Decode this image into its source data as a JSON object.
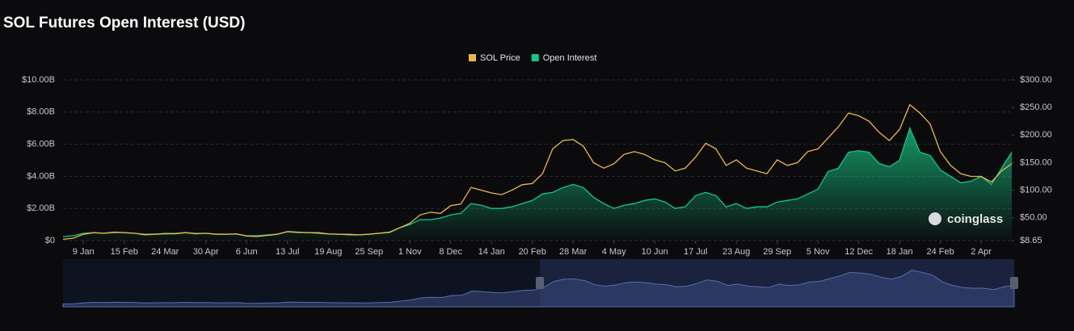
{
  "chart_data": {
    "type": "line",
    "title": "SOL Futures Open Interest (USD)",
    "watermark": "coinglass",
    "legend": "top",
    "categories": [
      null,
      null,
      "9 Jan",
      null,
      null,
      null,
      "15 Feb",
      null,
      null,
      null,
      "24 Mar",
      null,
      null,
      null,
      "30 Apr",
      null,
      null,
      null,
      "6 Jun",
      null,
      null,
      null,
      "13 Jul",
      null,
      null,
      null,
      "19 Aug",
      null,
      null,
      null,
      "25 Sep",
      null,
      null,
      null,
      "1 Nov",
      null,
      null,
      null,
      "8 Dec",
      null,
      null,
      null,
      "14 Jan",
      null,
      null,
      null,
      "20 Feb",
      null,
      null,
      null,
      "28 Mar",
      null,
      null,
      null,
      "4 May",
      null,
      null,
      null,
      "10 Jun",
      null,
      null,
      null,
      "17 Jul",
      null,
      null,
      null,
      "23 Aug",
      null,
      null,
      null,
      "29 Sep",
      null,
      null,
      null,
      "5 Nov",
      null,
      null,
      null,
      "12 Dec",
      null,
      null,
      null,
      "18 Jan",
      null,
      null,
      null,
      "24 Feb",
      null,
      null,
      null,
      "2 Apr",
      null,
      null,
      null
    ],
    "series": [
      {
        "name": "SOL Price",
        "color": "#e9b949",
        "axis": "y2",
        "values": [
          11,
          13,
          20,
          23,
          22,
          24,
          23,
          22,
          19,
          20,
          21,
          21,
          23,
          21,
          22,
          20,
          20,
          21,
          17,
          16,
          18,
          20,
          25,
          24,
          23,
          23,
          21,
          20,
          20,
          19,
          20,
          22,
          24,
          32,
          40,
          55,
          60,
          58,
          72,
          75,
          105,
          100,
          95,
          92,
          100,
          110,
          112,
          130,
          175,
          190,
          192,
          180,
          150,
          140,
          148,
          165,
          170,
          165,
          155,
          150,
          135,
          140,
          160,
          185,
          175,
          145,
          155,
          140,
          135,
          130,
          155,
          145,
          150,
          170,
          175,
          195,
          215,
          240,
          235,
          225,
          205,
          190,
          210,
          255,
          240,
          220,
          170,
          145,
          130,
          125,
          125,
          115,
          135,
          148
        ]
      },
      {
        "name": "Open Interest",
        "color": "#17c784",
        "fill": true,
        "values": [
          250000000.0,
          300000000.0,
          450000000.0,
          500000000.0,
          450000000.0,
          500000000.0,
          500000000.0,
          450000000.0,
          400000000.0,
          400000000.0,
          450000000.0,
          450000000.0,
          500000000.0,
          450000000.0,
          450000000.0,
          400000000.0,
          400000000.0,
          400000000.0,
          300000000.0,
          300000000.0,
          350000000.0,
          400000000.0,
          550000000.0,
          500000000.0,
          500000000.0,
          450000000.0,
          400000000.0,
          400000000.0,
          350000000.0,
          350000000.0,
          400000000.0,
          450000000.0,
          500000000.0,
          800000000.0,
          1000000000.0,
          1300000000.0,
          1300000000.0,
          1400000000.0,
          1600000000.0,
          1700000000.0,
          2300000000.0,
          2200000000.0,
          2000000000.0,
          2000000000.0,
          2100000000.0,
          2300000000.0,
          2500000000.0,
          2900000000.0,
          3000000000.0,
          3300000000.0,
          3500000000.0,
          3300000000.0,
          2700000000.0,
          2300000000.0,
          2000000000.0,
          2200000000.0,
          2300000000.0,
          2500000000.0,
          2600000000.0,
          2400000000.0,
          2000000000.0,
          2100000000.0,
          2800000000.0,
          3000000000.0,
          2800000000.0,
          2100000000.0,
          2300000000.0,
          2000000000.0,
          2100000000.0,
          2100000000.0,
          2400000000.0,
          2500000000.0,
          2600000000.0,
          2900000000.0,
          3200000000.0,
          4300000000.0,
          4500000000.0,
          5500000000.0,
          5600000000.0,
          5500000000.0,
          4800000000.0,
          4600000000.0,
          5000000000.0,
          7000000000.0,
          5500000000.0,
          5300000000.0,
          4400000000.0,
          4000000000.0,
          3600000000.0,
          3700000000.0,
          4000000000.0,
          3500000000.0,
          4500000000.0,
          5500000000.0
        ]
      }
    ],
    "ylim": [
      0,
      10000000000
    ],
    "yticks": [
      {
        "value": 0,
        "label": "$0"
      },
      {
        "value": 2000000000,
        "label": "$2.00B"
      },
      {
        "value": 4000000000,
        "label": "$4.00B"
      },
      {
        "value": 6000000000,
        "label": "$6.00B"
      },
      {
        "value": 8000000000,
        "label": "$8.00B"
      },
      {
        "value": 10000000000,
        "label": "$10.00B"
      }
    ],
    "y2lim": [
      8.65,
      300
    ],
    "y2ticks": [
      {
        "value": 8.65,
        "label": "$8.65"
      },
      {
        "value": 50,
        "label": "$50.00"
      },
      {
        "value": 100,
        "label": "$100.00"
      },
      {
        "value": 150,
        "label": "$150.00"
      },
      {
        "value": 200,
        "label": "$200.00"
      },
      {
        "value": 250,
        "label": "$250.00"
      },
      {
        "value": 300,
        "label": "$300.00"
      }
    ],
    "grid": true
  }
}
